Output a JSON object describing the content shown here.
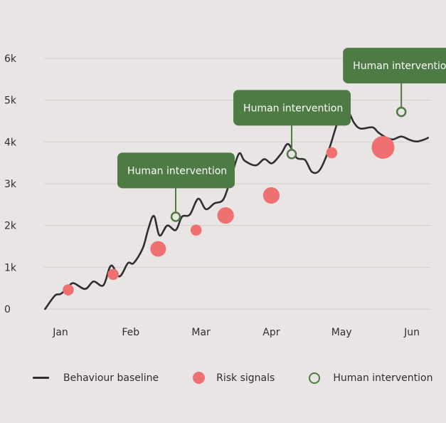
{
  "chart_data": {
    "type": "line",
    "title": "",
    "xlabel": "",
    "ylabel": "",
    "ylim": [
      0,
      6000
    ],
    "yticks": [
      0,
      1000,
      2000,
      3000,
      4000,
      5000,
      6000
    ],
    "ytick_labels": [
      "0",
      "1k",
      "2k",
      "3k",
      "4k",
      "5k",
      "6k"
    ],
    "x_range": [
      1,
      6.25
    ],
    "xticks": [
      1,
      2,
      3,
      4,
      5,
      6
    ],
    "xtick_labels": [
      "Jan",
      "Feb",
      "Mar",
      "Apr",
      "May",
      "Jun"
    ],
    "grid": true,
    "legend_position": "bottom",
    "colors": {
      "baseline": "#2f2f2f",
      "risk": "#ee7070",
      "intervention": "#4e7a43",
      "grid": "#d3cfce",
      "background": "#e9e5e4"
    },
    "series": [
      {
        "name": "Behaviour baseline",
        "type": "line",
        "x": [
          0.78,
          0.92,
          1.0,
          1.09,
          1.18,
          1.35,
          1.47,
          1.61,
          1.72,
          1.84,
          1.96,
          2.04,
          2.17,
          2.25,
          2.33,
          2.41,
          2.52,
          2.64,
          2.73,
          2.84,
          2.96,
          3.07,
          3.19,
          3.32,
          3.43,
          3.54,
          3.62,
          3.78,
          3.9,
          4.01,
          4.14,
          4.24,
          4.36,
          4.48,
          4.58,
          4.69,
          4.82,
          4.96,
          5.08,
          5.18,
          5.27,
          5.44,
          5.52,
          5.63,
          5.73,
          5.85,
          5.97,
          6.07,
          6.18,
          6.23
        ],
        "y": [
          0,
          320,
          360,
          480,
          620,
          480,
          660,
          570,
          1040,
          780,
          1100,
          1100,
          1450,
          1920,
          2230,
          1760,
          2000,
          1890,
          2210,
          2260,
          2640,
          2390,
          2530,
          2630,
          3170,
          3720,
          3550,
          3440,
          3590,
          3490,
          3720,
          3950,
          3620,
          3570,
          3280,
          3330,
          3820,
          4540,
          4740,
          4450,
          4320,
          4350,
          4230,
          4110,
          4060,
          4130,
          4050,
          4010,
          4060,
          4100
        ]
      },
      {
        "name": "Risk signals",
        "type": "scatter",
        "points": [
          {
            "x": 1.11,
            "y": 460,
            "size": 3
          },
          {
            "x": 1.75,
            "y": 830,
            "size": 3
          },
          {
            "x": 2.39,
            "y": 1440,
            "size": 10
          },
          {
            "x": 2.93,
            "y": 1890,
            "size": 3
          },
          {
            "x": 3.35,
            "y": 2240,
            "size": 12
          },
          {
            "x": 4.0,
            "y": 2720,
            "size": 12
          },
          {
            "x": 4.86,
            "y": 3740,
            "size": 3
          },
          {
            "x": 5.59,
            "y": 3870,
            "size": 30
          }
        ]
      },
      {
        "name": "Human intervention",
        "type": "scatter",
        "points": [
          {
            "x": 2.64,
            "y": 2210,
            "label": "Human intervention"
          },
          {
            "x": 4.29,
            "y": 3710,
            "label": "Human intervention"
          },
          {
            "x": 5.85,
            "y": 4720,
            "label": "Human intervention"
          }
        ]
      }
    ]
  },
  "legend": {
    "baseline_label": "Behaviour baseline",
    "risk_label": "Risk signals",
    "intervention_label": "Human intervention"
  }
}
